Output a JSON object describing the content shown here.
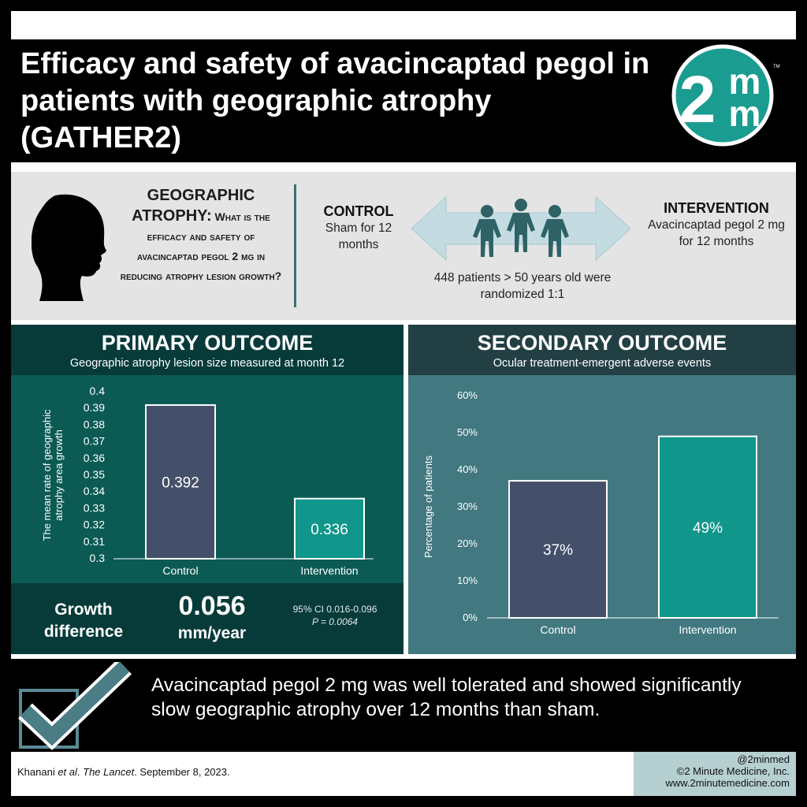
{
  "title": "Efficacy and safety of avacincaptad pegol in patients with geographic atrophy (GATHER2)",
  "logo": {
    "text_main": "2",
    "text_top": "m",
    "text_bottom": "m",
    "trademark": "TM",
    "icon": "two-minute-medicine-logo"
  },
  "design": {
    "question_lead": "GEOGRAPHIC ATROPHY:",
    "question_body": "What is the efficacy and safety of avacincaptad pegol 2 mg in reducing atrophy lesion growth?",
    "control": {
      "label": "CONTROL",
      "description": "Sham for 12 months"
    },
    "intervention": {
      "label": "INTERVENTION",
      "description": "Avacincaptad pegol 2 mg for 12 months"
    },
    "randomization": "448 patients > 50 years old were randomized 1:1",
    "icons": [
      "head-silhouette-icon",
      "double-arrow-icon",
      "patients-group-icon"
    ]
  },
  "primary": {
    "title": "PRIMARY OUTCOME",
    "subtitle": "Geographic atrophy lesion size measured at month 12",
    "growth_label": "Growth difference",
    "growth_value": "0.056",
    "growth_unit": "mm/year",
    "ci": "95% CI 0.016-0.096",
    "p": "P = 0.0064"
  },
  "secondary": {
    "title": "SECONDARY OUTCOME",
    "subtitle": "Ocular treatment-emergent adverse events"
  },
  "conclusion": "Avacincaptad pegol 2 mg was well tolerated and showed significantly slow geographic atrophy over 12 months than sham.",
  "conclusion_icon": "checkmark-icon",
  "citation": {
    "authors": "Khanani ",
    "etal": "et al",
    "sep": ". ",
    "journal": "The Lancet",
    "date": ". September 8, 2023."
  },
  "credit": {
    "handle": "@2minmed",
    "copyright": "©2 Minute Medicine, Inc.",
    "url": "www.2minutemedicine.com"
  },
  "colors": {
    "control_bar": "#44506a",
    "intervention_bar": "#10968a",
    "brand_teal": "#1b9c91"
  },
  "chart_data": [
    {
      "type": "bar",
      "categories": [
        "Control",
        "Intervention"
      ],
      "values": [
        0.392,
        0.336
      ],
      "value_labels": [
        "0.392",
        "0.336"
      ],
      "ylabel": "The mean rate of geographic atrophy area growth",
      "xlabel": "",
      "ylim": [
        0.3,
        0.4
      ],
      "yticks": [
        "0.3",
        "0.31",
        "0.32",
        "0.33",
        "0.34",
        "0.35",
        "0.36",
        "0.37",
        "0.38",
        "0.39",
        "0.4"
      ],
      "grid": false
    },
    {
      "type": "bar",
      "categories": [
        "Control",
        "Intervention"
      ],
      "values": [
        37,
        49
      ],
      "value_labels": [
        "37%",
        "49%"
      ],
      "ylabel": "Percentage of patients",
      "xlabel": "",
      "ylim": [
        0,
        60
      ],
      "yticks": [
        "0%",
        "10%",
        "20%",
        "30%",
        "40%",
        "50%",
        "60%"
      ],
      "grid": false
    }
  ]
}
